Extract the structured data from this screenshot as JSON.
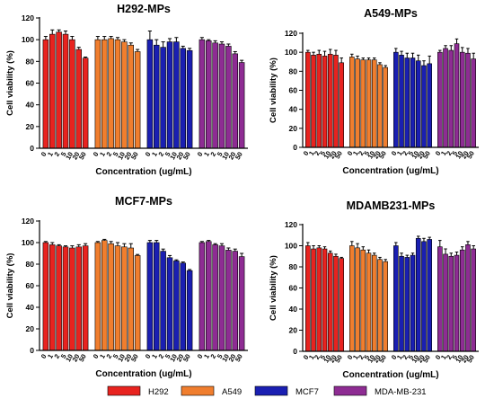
{
  "colors": {
    "H292": "#e8231f",
    "A549": "#f07e2e",
    "MCF7": "#1a1fb2",
    "MDA-MB-231": "#8e2c93"
  },
  "legend": [
    "H292",
    "A549",
    "MCF7",
    "MDA-MB-231"
  ],
  "chart_data": [
    {
      "type": "bar",
      "title": "H292-MPs",
      "xlabel": "Concentration (ug/mL)",
      "ylabel": "Cell viability (%)",
      "ylim": [
        0,
        120
      ],
      "yticks": [
        0,
        20,
        40,
        60,
        80,
        100,
        120
      ],
      "categories": [
        "0",
        "1",
        "2",
        "5",
        "10",
        "20",
        "50"
      ],
      "series": [
        {
          "name": "H292",
          "values": [
            100,
            105,
            107,
            105,
            100,
            91,
            83
          ],
          "errors": [
            3,
            4,
            2,
            3,
            3,
            2,
            1
          ]
        },
        {
          "name": "A549",
          "values": [
            100,
            100,
            101,
            100,
            98,
            95,
            89
          ],
          "errors": [
            3,
            3,
            2,
            2,
            2,
            2,
            2
          ]
        },
        {
          "name": "MCF7",
          "values": [
            100,
            95,
            93,
            98,
            98,
            92,
            90
          ],
          "errors": [
            8,
            5,
            5,
            3,
            4,
            2,
            2
          ]
        },
        {
          "name": "MDA-MB-231",
          "values": [
            100,
            99,
            97,
            96,
            94,
            87,
            79
          ],
          "errors": [
            2,
            1,
            2,
            2,
            2,
            2,
            2
          ]
        }
      ]
    },
    {
      "type": "bar",
      "title": "A549-MPs",
      "xlabel": "Concentration (ug/mL)",
      "ylabel": "Cell viability (%)",
      "ylim": [
        0,
        120
      ],
      "yticks": [
        0,
        20,
        40,
        60,
        80,
        100,
        120
      ],
      "categories": [
        "0",
        "1",
        "2",
        "5",
        "10",
        "20",
        "50"
      ],
      "series": [
        {
          "name": "H292",
          "values": [
            100,
            97,
            98,
            96,
            98,
            97,
            89
          ],
          "errors": [
            2,
            3,
            4,
            5,
            5,
            5,
            5
          ]
        },
        {
          "name": "A549",
          "values": [
            95,
            93,
            92,
            92,
            92,
            87,
            84
          ],
          "errors": [
            3,
            3,
            2,
            2,
            2,
            2,
            2
          ]
        },
        {
          "name": "MCF7",
          "values": [
            100,
            97,
            94,
            94,
            91,
            86,
            88
          ],
          "errors": [
            4,
            4,
            5,
            5,
            6,
            5,
            8
          ]
        },
        {
          "name": "MDA-MB-231",
          "values": [
            100,
            104,
            102,
            109,
            100,
            99,
            93
          ],
          "errors": [
            2,
            3,
            5,
            5,
            5,
            5,
            6
          ]
        }
      ]
    },
    {
      "type": "bar",
      "title": "MCF7-MPs",
      "xlabel": "Concentration (ug/mL)",
      "ylabel": "Cell viability (%)",
      "ylim": [
        0,
        120
      ],
      "yticks": [
        0,
        20,
        40,
        60,
        80,
        100,
        120
      ],
      "categories": [
        "0",
        "1",
        "2",
        "5",
        "10",
        "20",
        "50"
      ],
      "series": [
        {
          "name": "H292",
          "values": [
            100,
            98,
            97,
            96,
            95,
            96,
            97
          ],
          "errors": [
            1,
            2,
            1,
            1,
            2,
            2,
            2
          ]
        },
        {
          "name": "A549",
          "values": [
            100,
            102,
            99,
            97,
            96,
            95,
            88
          ],
          "errors": [
            1,
            1,
            2,
            3,
            3,
            4,
            1
          ]
        },
        {
          "name": "MCF7",
          "values": [
            100,
            100,
            92,
            86,
            83,
            81,
            74
          ],
          "errors": [
            2,
            2,
            2,
            2,
            1,
            1,
            1
          ]
        },
        {
          "name": "MDA-MB-231",
          "values": [
            100,
            101,
            98,
            97,
            93,
            92,
            87
          ],
          "errors": [
            1,
            1,
            1,
            2,
            2,
            2,
            3
          ]
        }
      ]
    },
    {
      "type": "bar",
      "title": "MDAMB231-MPs",
      "xlabel": "Concentration (ug/mL)",
      "ylabel": "Cell viability (%)",
      "ylim": [
        0,
        120
      ],
      "yticks": [
        0,
        20,
        40,
        60,
        80,
        100,
        120
      ],
      "categories": [
        "0",
        "1",
        "2",
        "5",
        "10",
        "20",
        "50"
      ],
      "series": [
        {
          "name": "H292",
          "values": [
            100,
            97,
            98,
            97,
            93,
            90,
            88
          ],
          "errors": [
            3,
            3,
            2,
            2,
            2,
            2,
            1
          ]
        },
        {
          "name": "A549",
          "values": [
            100,
            98,
            96,
            93,
            91,
            87,
            85
          ],
          "errors": [
            4,
            4,
            3,
            3,
            2,
            2,
            2
          ]
        },
        {
          "name": "MCF7",
          "values": [
            100,
            90,
            89,
            91,
            107,
            104,
            106
          ],
          "errors": [
            3,
            3,
            2,
            2,
            2,
            3,
            2
          ]
        },
        {
          "name": "MDA-MB-231",
          "values": [
            99,
            92,
            90,
            91,
            96,
            101,
            97
          ],
          "errors": [
            6,
            5,
            3,
            3,
            3,
            3,
            3
          ]
        }
      ]
    }
  ]
}
